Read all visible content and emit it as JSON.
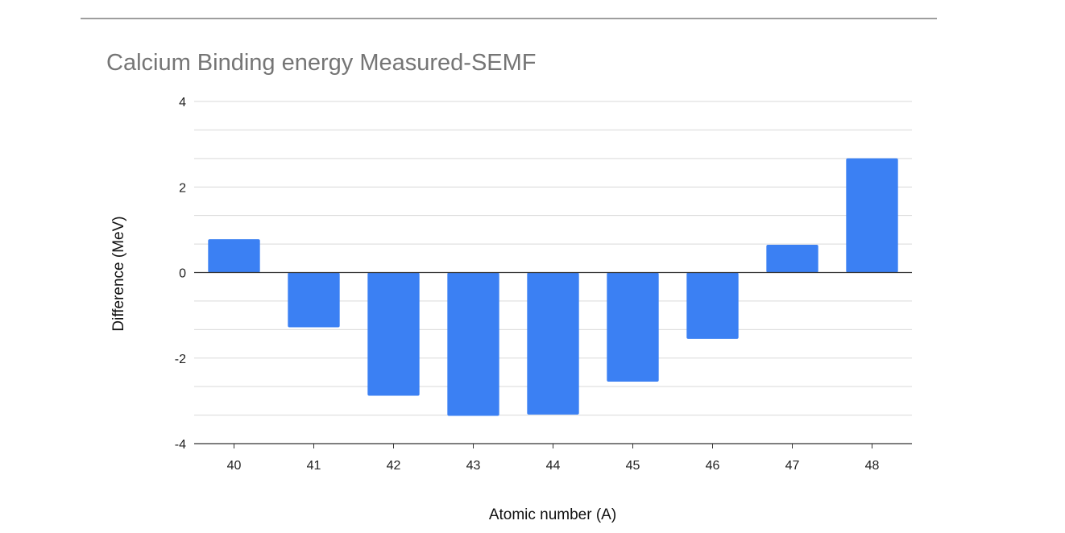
{
  "chart_data": {
    "type": "bar",
    "title": "Calcium Binding energy Measured-SEMF",
    "xlabel": "Atomic number (A)",
    "ylabel": "Difference (MeV)",
    "categories": [
      "40",
      "41",
      "42",
      "43",
      "44",
      "45",
      "46",
      "47",
      "48"
    ],
    "series": [
      {
        "values": [
          0.78,
          -1.28,
          -2.88,
          -3.35,
          -3.32,
          -2.55,
          -1.55,
          0.65,
          2.67
        ]
      }
    ],
    "ylim": [
      -4,
      4
    ],
    "yticks": [
      "4",
      "2",
      "0",
      "-2",
      "-4"
    ],
    "grid": true,
    "bar_color": "#3b80f3",
    "gridline_color": "#d9d9d9"
  }
}
